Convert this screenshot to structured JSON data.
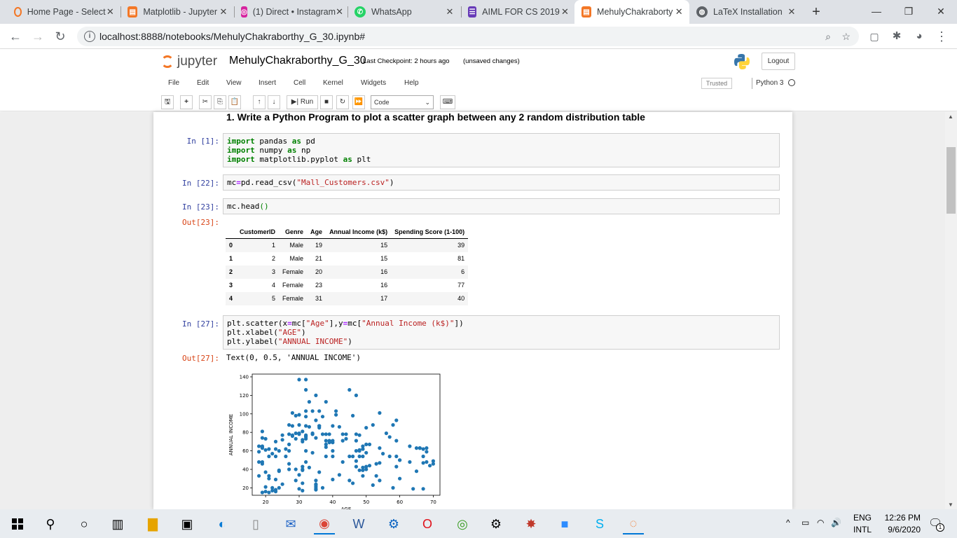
{
  "browser": {
    "tabs": [
      {
        "title": "Home Page - Select",
        "icon": "jupyter-orange-icon",
        "color": "#f37726"
      },
      {
        "title": "Matplotlib - Jupyter",
        "icon": "notebook-icon",
        "color": "#f37726"
      },
      {
        "title": "(1) Direct • Instagram",
        "icon": "instagram-icon",
        "color": "#d6249f"
      },
      {
        "title": "WhatsApp",
        "icon": "whatsapp-icon",
        "color": "#25d366"
      },
      {
        "title": "AIML FOR CS 2019",
        "icon": "forms-icon",
        "color": "#673ab7"
      },
      {
        "title": "MehulyChakraborty",
        "icon": "notebook-icon",
        "color": "#f37726"
      },
      {
        "title": "LaTeX Installation",
        "icon": "globe-icon",
        "color": "#5f6368"
      }
    ],
    "active_tab": 5,
    "url": "localhost:8888/notebooks/MehulyChakraborthy_G_30.ipynb#"
  },
  "jupyter": {
    "logo_text": "jupyter",
    "notebook_name": "MehulyChakraborthy_G_30",
    "checkpoint": "Last Checkpoint: 2 hours ago",
    "unsaved": "(unsaved changes)",
    "logout": "Logout",
    "menu": [
      "File",
      "Edit",
      "View",
      "Insert",
      "Cell",
      "Kernel",
      "Widgets",
      "Help"
    ],
    "trusted": "Trusted",
    "kernel_name": "Python 3",
    "run_label": "Run",
    "cell_type": "Code"
  },
  "notebook": {
    "heading": "1. Write a Python Program to plot a scatter graph between any 2 random distribution table",
    "cells": [
      {
        "prompt": "In [1]:"
      },
      {
        "prompt": "In [22]:"
      },
      {
        "prompt": "In [23]:"
      },
      {
        "prompt": "Out[23]:"
      },
      {
        "prompt": "In [27]:"
      },
      {
        "prompt": "Out[27]:",
        "text": "Text(0, 0.5, 'ANNUAL INCOME')"
      }
    ],
    "table": {
      "columns": [
        "",
        "CustomerID",
        "Genre",
        "Age",
        "Annual Income (k$)",
        "Spending Score (1-100)"
      ],
      "rows": [
        [
          "0",
          "1",
          "Male",
          "19",
          "15",
          "39"
        ],
        [
          "1",
          "2",
          "Male",
          "21",
          "15",
          "81"
        ],
        [
          "2",
          "3",
          "Female",
          "20",
          "16",
          "6"
        ],
        [
          "3",
          "4",
          "Female",
          "23",
          "16",
          "77"
        ],
        [
          "4",
          "5",
          "Female",
          "31",
          "17",
          "40"
        ]
      ]
    }
  },
  "chart_data": {
    "type": "scatter",
    "xlabel": "AGE",
    "ylabel": "ANNUAL INCOME",
    "xlim": [
      16,
      72
    ],
    "ylim": [
      12,
      143
    ],
    "xticks": [
      20,
      30,
      40,
      50,
      60,
      70
    ],
    "yticks": [
      20,
      40,
      60,
      80,
      100,
      120,
      140
    ],
    "color": "#1f77b4",
    "points": [
      [
        19,
        15
      ],
      [
        21,
        15
      ],
      [
        20,
        16
      ],
      [
        23,
        16
      ],
      [
        31,
        17
      ],
      [
        22,
        17
      ],
      [
        35,
        18
      ],
      [
        23,
        18
      ],
      [
        64,
        19
      ],
      [
        30,
        19
      ],
      [
        67,
        19
      ],
      [
        35,
        19
      ],
      [
        58,
        20
      ],
      [
        24,
        20
      ],
      [
        37,
        20
      ],
      [
        22,
        20
      ],
      [
        35,
        21
      ],
      [
        20,
        21
      ],
      [
        52,
        23
      ],
      [
        35,
        23
      ],
      [
        35,
        24
      ],
      [
        25,
        24
      ],
      [
        46,
        25
      ],
      [
        31,
        25
      ],
      [
        54,
        28
      ],
      [
        29,
        28
      ],
      [
        45,
        28
      ],
      [
        35,
        28
      ],
      [
        40,
        29
      ],
      [
        23,
        29
      ],
      [
        60,
        30
      ],
      [
        21,
        30
      ],
      [
        53,
        33
      ],
      [
        18,
        33
      ],
      [
        49,
        33
      ],
      [
        21,
        33
      ],
      [
        42,
        34
      ],
      [
        30,
        34
      ],
      [
        36,
        37
      ],
      [
        20,
        37
      ],
      [
        65,
        38
      ],
      [
        24,
        38
      ],
      [
        48,
        39
      ],
      [
        31,
        39
      ],
      [
        49,
        39
      ],
      [
        24,
        39
      ],
      [
        50,
        40
      ],
      [
        27,
        40
      ],
      [
        29,
        40
      ],
      [
        31,
        40
      ],
      [
        49,
        42
      ],
      [
        33,
        42
      ],
      [
        31,
        43
      ],
      [
        59,
        43
      ],
      [
        50,
        43
      ],
      [
        47,
        43
      ],
      [
        51,
        44
      ],
      [
        69,
        44
      ],
      [
        27,
        46
      ],
      [
        53,
        46
      ],
      [
        70,
        46
      ],
      [
        19,
        46
      ],
      [
        67,
        47
      ],
      [
        54,
        47
      ],
      [
        63,
        48
      ],
      [
        18,
        48
      ],
      [
        43,
        48
      ],
      [
        68,
        48
      ],
      [
        19,
        48
      ],
      [
        32,
        48
      ],
      [
        70,
        49
      ],
      [
        47,
        49
      ],
      [
        60,
        50
      ],
      [
        60,
        50
      ],
      [
        59,
        54
      ],
      [
        26,
        54
      ],
      [
        45,
        54
      ],
      [
        40,
        54
      ],
      [
        23,
        54
      ],
      [
        49,
        54
      ],
      [
        57,
        54
      ],
      [
        38,
        54
      ],
      [
        67,
        54
      ],
      [
        46,
        54
      ],
      [
        21,
        54
      ],
      [
        48,
        54
      ],
      [
        55,
        57
      ],
      [
        22,
        57
      ],
      [
        34,
        58
      ],
      [
        50,
        58
      ],
      [
        68,
        59
      ],
      [
        18,
        59
      ],
      [
        48,
        60
      ],
      [
        40,
        60
      ],
      [
        32,
        60
      ],
      [
        24,
        60
      ],
      [
        47,
        60
      ],
      [
        27,
        60
      ],
      [
        48,
        61
      ],
      [
        20,
        61
      ],
      [
        23,
        62
      ],
      [
        49,
        62
      ],
      [
        67,
        62
      ],
      [
        26,
        62
      ],
      [
        49,
        62
      ],
      [
        21,
        62
      ],
      [
        66,
        63
      ],
      [
        54,
        63
      ],
      [
        68,
        63
      ],
      [
        66,
        63
      ],
      [
        65,
        63
      ],
      [
        19,
        63
      ],
      [
        38,
        64
      ],
      [
        19,
        64
      ],
      [
        18,
        65
      ],
      [
        19,
        65
      ],
      [
        63,
        65
      ],
      [
        49,
        65
      ],
      [
        51,
        67
      ],
      [
        50,
        67
      ],
      [
        27,
        67
      ],
      [
        38,
        67
      ],
      [
        40,
        69
      ],
      [
        39,
        69
      ],
      [
        23,
        70
      ],
      [
        31,
        70
      ],
      [
        43,
        71
      ],
      [
        40,
        71
      ],
      [
        59,
        71
      ],
      [
        38,
        71
      ],
      [
        47,
        71
      ],
      [
        39,
        71
      ],
      [
        25,
        72
      ],
      [
        31,
        72
      ],
      [
        20,
        73
      ],
      [
        29,
        73
      ],
      [
        44,
        73
      ],
      [
        32,
        73
      ],
      [
        19,
        74
      ],
      [
        35,
        74
      ],
      [
        57,
        75
      ],
      [
        32,
        75
      ],
      [
        28,
        76
      ],
      [
        32,
        76
      ],
      [
        25,
        77
      ],
      [
        28,
        77
      ],
      [
        48,
        77
      ],
      [
        32,
        77
      ],
      [
        34,
        78
      ],
      [
        34,
        78
      ],
      [
        43,
        78
      ],
      [
        39,
        78
      ],
      [
        44,
        78
      ],
      [
        38,
        78
      ],
      [
        47,
        78
      ],
      [
        27,
        78
      ],
      [
        37,
        78
      ],
      [
        30,
        78
      ],
      [
        34,
        79
      ],
      [
        30,
        79
      ],
      [
        56,
        79
      ],
      [
        29,
        79
      ],
      [
        19,
        81
      ],
      [
        31,
        81
      ],
      [
        50,
        85
      ],
      [
        36,
        85
      ],
      [
        42,
        86
      ],
      [
        33,
        86
      ],
      [
        36,
        87
      ],
      [
        32,
        87
      ],
      [
        40,
        87
      ],
      [
        28,
        87
      ],
      [
        36,
        87
      ],
      [
        36,
        87
      ],
      [
        52,
        88
      ],
      [
        30,
        88
      ],
      [
        58,
        88
      ],
      [
        27,
        88
      ],
      [
        59,
        93
      ],
      [
        35,
        93
      ],
      [
        37,
        97
      ],
      [
        32,
        97
      ],
      [
        46,
        98
      ],
      [
        29,
        98
      ],
      [
        41,
        99
      ],
      [
        30,
        99
      ],
      [
        54,
        101
      ],
      [
        28,
        101
      ],
      [
        41,
        103
      ],
      [
        36,
        103
      ],
      [
        34,
        103
      ],
      [
        32,
        103
      ],
      [
        33,
        113
      ],
      [
        38,
        113
      ],
      [
        47,
        120
      ],
      [
        35,
        120
      ],
      [
        45,
        126
      ],
      [
        32,
        126
      ],
      [
        32,
        137
      ],
      [
        30,
        137
      ]
    ]
  },
  "taskbar": {
    "lang_top": "ENG",
    "lang_bottom": "INTL",
    "time": "12:26 PM",
    "date": "9/6/2020",
    "notif_count": "1"
  }
}
